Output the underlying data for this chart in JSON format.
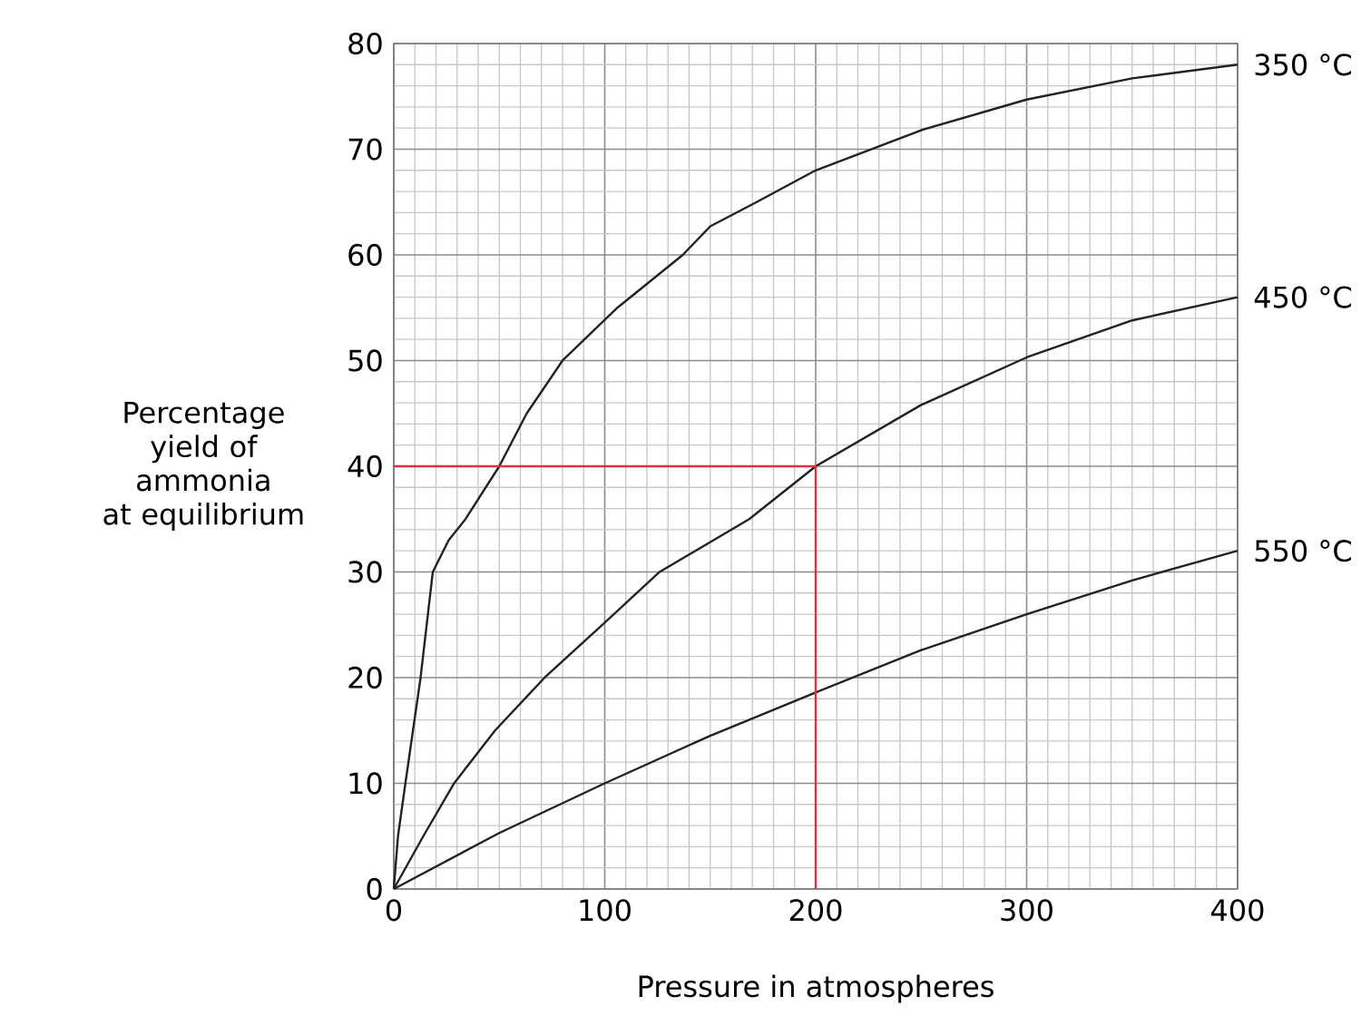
{
  "chart_data": {
    "type": "line",
    "xlabel": "Pressure in atmospheres",
    "ylabel": "Percentage yield of ammonia at equilibrium",
    "xlim": [
      0,
      400
    ],
    "ylim": [
      0,
      80
    ],
    "xticks": [
      0,
      100,
      200,
      300,
      400
    ],
    "yticks": [
      0,
      10,
      20,
      30,
      40,
      50,
      60,
      70,
      80
    ],
    "grid": true,
    "series": [
      {
        "name": "350 °C",
        "color": "#222222",
        "x": [
          0,
          2,
          5.5,
          12.7,
          18.5,
          26,
          34,
          50,
          63,
          80,
          106,
          137,
          150,
          172,
          200,
          250,
          300,
          350,
          400
        ],
        "values": [
          0,
          5,
          10,
          20,
          30,
          33,
          35,
          40,
          45,
          50,
          55,
          60,
          62.7,
          65,
          68,
          71.8,
          74.7,
          76.7,
          78
        ]
      },
      {
        "name": "450 °C",
        "color": "#222222",
        "x": [
          0,
          14,
          28.6,
          48,
          71.5,
          100,
          126,
          168.5,
          200,
          250,
          300,
          350,
          400
        ],
        "values": [
          0,
          5,
          10,
          15,
          20,
          25.2,
          30,
          35,
          40,
          45.8,
          50.3,
          53.8,
          56
        ]
      },
      {
        "name": "550 °C",
        "color": "#222222",
        "x": [
          0,
          50,
          100,
          150,
          200,
          250,
          300,
          350,
          400
        ],
        "values": [
          0,
          5.3,
          10,
          14.5,
          18.6,
          22.6,
          26,
          29.2,
          32
        ]
      },
      {
        "color": "#e03040",
        "x": [
          0,
          200,
          200
        ],
        "values": [
          40,
          40,
          0
        ]
      }
    ]
  }
}
